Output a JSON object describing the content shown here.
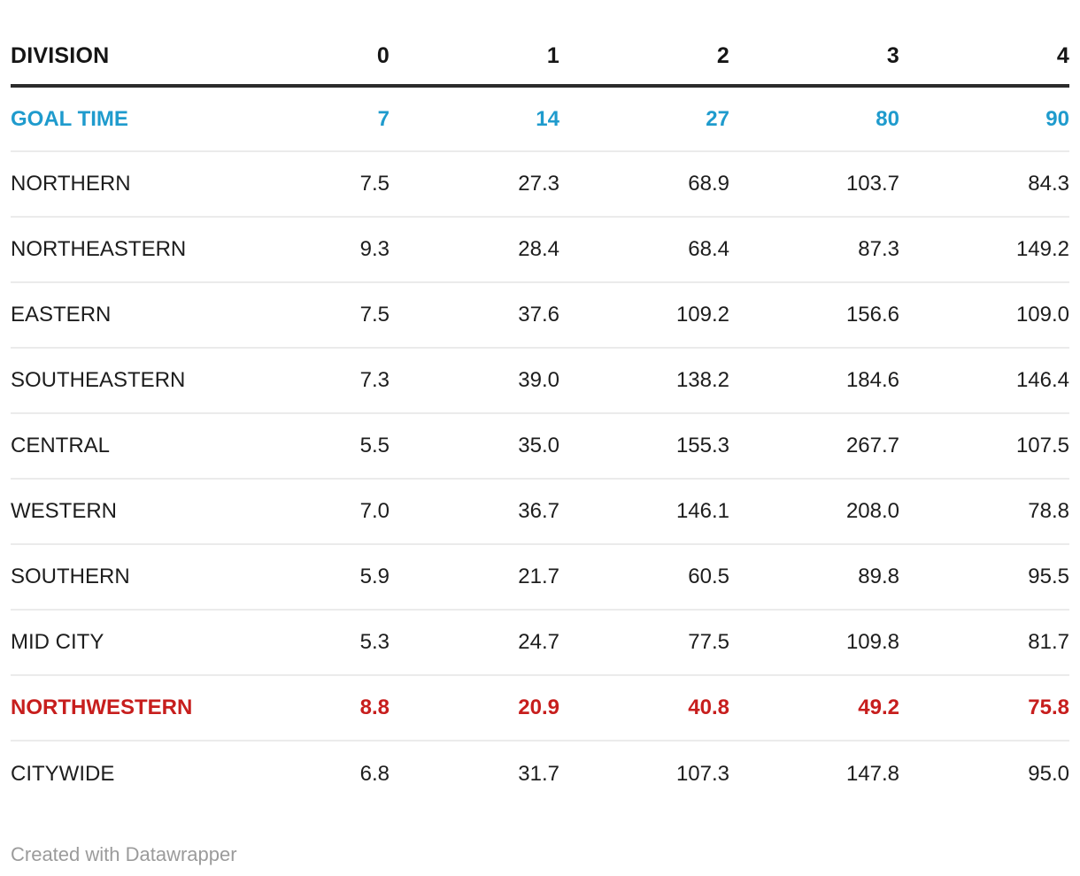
{
  "chart_data": {
    "type": "table",
    "columns": [
      "DIVISION",
      "0",
      "1",
      "2",
      "3",
      "4"
    ],
    "goal_row": {
      "label": "GOAL TIME",
      "values": [
        "7",
        "14",
        "27",
        "80",
        "90"
      ]
    },
    "rows": [
      {
        "label": "NORTHERN",
        "values": [
          "7.5",
          "27.3",
          "68.9",
          "103.7",
          "84.3"
        ],
        "highlight": false
      },
      {
        "label": "NORTHEASTERN",
        "values": [
          "9.3",
          "28.4",
          "68.4",
          "87.3",
          "149.2"
        ],
        "highlight": false
      },
      {
        "label": "EASTERN",
        "values": [
          "7.5",
          "37.6",
          "109.2",
          "156.6",
          "109.0"
        ],
        "highlight": false
      },
      {
        "label": "SOUTHEASTERN",
        "values": [
          "7.3",
          "39.0",
          "138.2",
          "184.6",
          "146.4"
        ],
        "highlight": false
      },
      {
        "label": "CENTRAL",
        "values": [
          "5.5",
          "35.0",
          "155.3",
          "267.7",
          "107.5"
        ],
        "highlight": false
      },
      {
        "label": "WESTERN",
        "values": [
          "7.0",
          "36.7",
          "146.1",
          "208.0",
          "78.8"
        ],
        "highlight": false
      },
      {
        "label": "SOUTHERN",
        "values": [
          "5.9",
          "21.7",
          "60.5",
          "89.8",
          "95.5"
        ],
        "highlight": false
      },
      {
        "label": "MID CITY",
        "values": [
          "5.3",
          "24.7",
          "77.5",
          "109.8",
          "81.7"
        ],
        "highlight": false
      },
      {
        "label": "NORTHWESTERN",
        "values": [
          "8.8",
          "20.9",
          "40.8",
          "49.2",
          "75.8"
        ],
        "highlight": true
      },
      {
        "label": "CITYWIDE",
        "values": [
          "6.8",
          "31.7",
          "107.3",
          "147.8",
          "95.0"
        ],
        "highlight": false
      }
    ],
    "layout": {
      "numeric_alignment": "right",
      "goal_row_style": "blue-bold",
      "highlight_row_style": "red-bold"
    }
  },
  "footer": {
    "credit": "Created with Datawrapper"
  },
  "colors": {
    "goal_blue": "#1f9bcd",
    "highlight_red": "#c71e1d",
    "header_rule": "#2b2b2b",
    "row_divider": "#ebebeb",
    "text": "#1d1d1d",
    "footer_text": "#9b9b9b"
  }
}
